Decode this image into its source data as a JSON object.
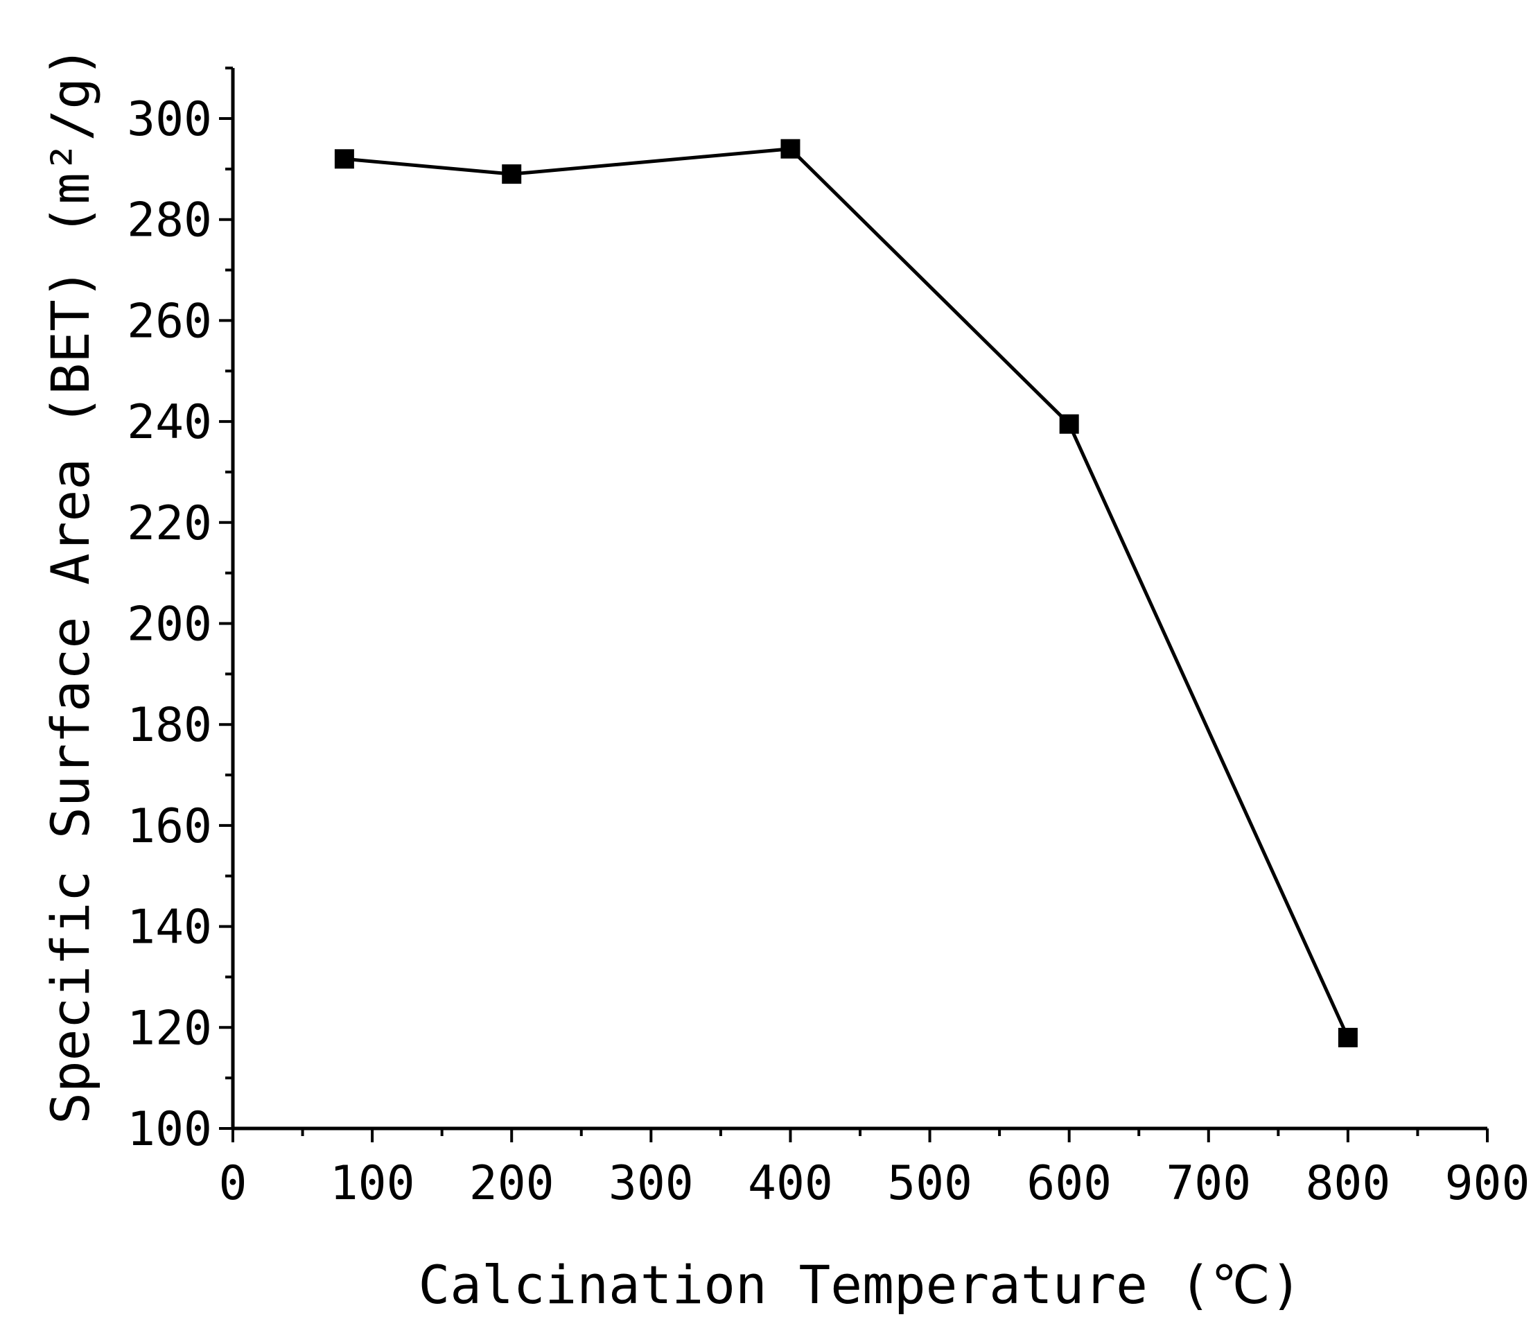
{
  "chart_data": {
    "type": "line",
    "title": "",
    "xlabel": "Calcination Temperature (℃)",
    "ylabel": "Specific Surface Area (BET) (m²/g)",
    "xlim": [
      0,
      900
    ],
    "ylim": [
      100,
      310
    ],
    "xticks": [
      0,
      100,
      200,
      300,
      400,
      500,
      600,
      700,
      800,
      900
    ],
    "yticks": [
      100,
      120,
      140,
      160,
      180,
      200,
      220,
      240,
      260,
      280,
      300
    ],
    "x_minor_step": 50,
    "y_minor_step": 10,
    "grid": false,
    "legend": "none",
    "marker": "square",
    "line_color": "#000000",
    "series": [
      {
        "x": [
          80,
          200,
          400,
          600,
          800
        ],
        "y": [
          292,
          289,
          294,
          239.5,
          118
        ]
      }
    ]
  }
}
